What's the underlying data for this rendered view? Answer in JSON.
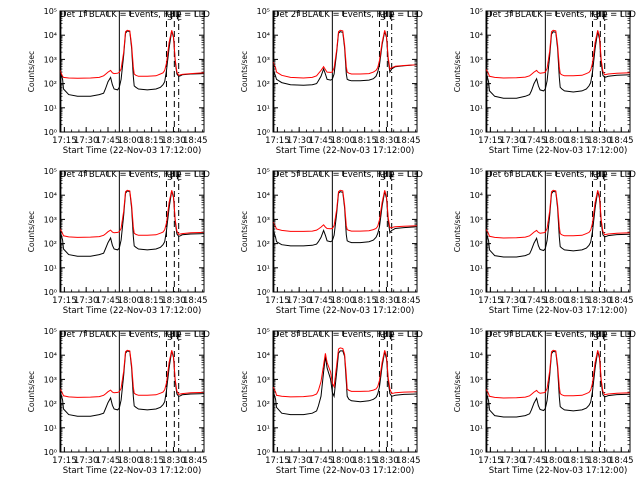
{
  "chart_data": {
    "type": "line",
    "layout": {
      "rows": 3,
      "cols": 3
    },
    "shared": {
      "xlabel": "Start Time (22-Nov-03 17:12:00)",
      "ylabel": "Counts/sec",
      "xlim": [
        17.2,
        18.85
      ],
      "x_ticks": [
        17.25,
        17.5,
        17.75,
        18.0,
        18.25,
        18.5,
        18.75
      ],
      "x_tick_labels": [
        "17:15",
        "17:30",
        "17:45",
        "18:00",
        "18:15",
        "18:30",
        "18:45"
      ],
      "y_scale": "log",
      "ylim": [
        1,
        100000
      ],
      "y_ticks": [
        1,
        10,
        100,
        1000,
        10000,
        100000
      ],
      "y_tick_labels": [
        "10⁰",
        "10¹",
        "10²",
        "10³",
        "10⁴",
        "10⁵"
      ],
      "vlines": [
        {
          "x": 17.21,
          "style": "solid"
        },
        {
          "x": 17.88,
          "style": "solid"
        },
        {
          "x": 18.42,
          "style": "dashed"
        },
        {
          "x": 18.51,
          "style": "dashed"
        },
        {
          "x": 18.56,
          "style": "dashdot"
        }
      ],
      "marks": {
        "x_ticks": [
          18.48,
          18.545
        ],
        "labels": [
          "S",
          "E"
        ]
      },
      "colors": {
        "events": "#000000",
        "lld": "#ff0000"
      },
      "x": [
        17.2,
        17.23,
        17.24,
        17.3,
        17.4,
        17.55,
        17.65,
        17.7,
        17.72,
        17.75,
        17.78,
        17.8,
        17.82,
        17.86,
        17.88,
        17.9,
        17.93,
        17.95,
        17.97,
        18.0,
        18.02,
        18.04,
        18.05,
        18.07,
        18.1,
        18.2,
        18.3,
        18.35,
        18.38,
        18.4,
        18.42,
        18.45,
        18.48,
        18.5,
        18.52,
        18.54,
        18.56,
        18.58,
        18.6,
        18.7,
        18.85
      ]
    },
    "panels": [
      {
        "title": "Det 1f BLACK = Events, RED = LLD",
        "series": [
          {
            "name": "Events",
            "values": [
              350,
              150,
              60,
              35,
              30,
              30,
              35,
              40,
              60,
              120,
              180,
              90,
              60,
              55,
              70,
              150,
              1500,
              12000,
              15000,
              14000,
              3000,
              200,
              80,
              70,
              60,
              55,
              60,
              70,
              90,
              120,
              350,
              3000,
              15000,
              8000,
              800,
              250,
              200,
              210,
              230,
              250,
              260
            ]
          },
          {
            "name": "LLD",
            "values": [
              350,
              200,
              180,
              170,
              165,
              170,
              180,
              210,
              240,
              300,
              350,
              280,
              260,
              270,
              290,
              400,
              2000,
              14000,
              16000,
              15000,
              4000,
              500,
              250,
              220,
              200,
              200,
              210,
              250,
              280,
              350,
              700,
              5000,
              16000,
              9000,
              1000,
              300,
              220,
              230,
              240,
              260,
              280
            ]
          }
        ]
      },
      {
        "title": "Det 2f BLACK = Events, RED = LLD",
        "series": [
          {
            "name": "Events",
            "values": [
              400,
              200,
              150,
              110,
              90,
              85,
              90,
              100,
              130,
              200,
              400,
              250,
              150,
              140,
              150,
              250,
              2000,
              12000,
              14000,
              13000,
              3000,
              250,
              150,
              140,
              130,
              130,
              140,
              160,
              200,
              300,
              600,
              4000,
              14000,
              8000,
              900,
              300,
              400,
              450,
              500,
              550,
              600
            ]
          },
          {
            "name": "LLD",
            "values": [
              800,
              450,
              300,
              220,
              180,
              170,
              180,
              210,
              260,
              350,
              500,
              380,
              300,
              290,
              300,
              450,
              2500,
              14000,
              16000,
              15000,
              4000,
              500,
              300,
              270,
              250,
              250,
              260,
              300,
              350,
              450,
              900,
              5000,
              16000,
              9000,
              1200,
              400,
              450,
              480,
              520,
              560,
              600
            ]
          }
        ]
      },
      {
        "title": "Det 3f BLACK = Events, RED = LLD",
        "series": [
          {
            "name": "Events",
            "values": [
              300,
              120,
              50,
              30,
              25,
              25,
              30,
              35,
              50,
              100,
              160,
              80,
              55,
              50,
              60,
              130,
              1400,
              11000,
              14000,
              13000,
              2800,
              180,
              70,
              60,
              50,
              45,
              50,
              60,
              80,
              110,
              300,
              2800,
              14000,
              7000,
              700,
              220,
              180,
              190,
              200,
              220,
              230
            ]
          },
          {
            "name": "LLD",
            "values": [
              400,
              250,
              200,
              180,
              170,
              175,
              185,
              210,
              240,
              300,
              350,
              290,
              270,
              280,
              300,
              420,
              2200,
              14000,
              16000,
              15000,
              4000,
              500,
              260,
              230,
              210,
              210,
              220,
              260,
              290,
              360,
              700,
              5000,
              16000,
              9000,
              1000,
              320,
              230,
              240,
              250,
              270,
              280
            ]
          }
        ]
      },
      {
        "title": "Det 4f BLACK = Events, RED = LLD",
        "series": [
          {
            "name": "Events",
            "values": [
              350,
              140,
              60,
              35,
              30,
              30,
              35,
              40,
              60,
              110,
              170,
              85,
              60,
              55,
              65,
              140,
              1500,
              12000,
              15000,
              14000,
              3000,
              200,
              80,
              70,
              60,
              55,
              60,
              70,
              90,
              120,
              350,
              3000,
              15000,
              8000,
              800,
              250,
              200,
              210,
              230,
              250,
              260
            ]
          },
          {
            "name": "LLD",
            "values": [
              420,
              260,
              210,
              190,
              180,
              185,
              195,
              220,
              250,
              310,
              360,
              300,
              280,
              290,
              310,
              430,
              2200,
              14000,
              16000,
              15000,
              4000,
              500,
              270,
              240,
              220,
              220,
              230,
              270,
              300,
              370,
              720,
              5000,
              16000,
              9000,
              1000,
              330,
              240,
              250,
              260,
              280,
              290
            ]
          }
        ]
      },
      {
        "title": "Det 5f BLACK = Events, RED = LLD",
        "series": [
          {
            "name": "Events",
            "values": [
              400,
              180,
              120,
              90,
              80,
              80,
              85,
              95,
              120,
              180,
              350,
              220,
              130,
              120,
              130,
              220,
              1800,
              12000,
              14000,
              13000,
              3000,
              230,
              130,
              120,
              110,
              110,
              120,
              140,
              180,
              260,
              500,
              3500,
              14000,
              7500,
              850,
              280,
              350,
              380,
              420,
              460,
              500
            ]
          },
          {
            "name": "LLD",
            "values": [
              800,
              500,
              400,
              350,
              320,
              320,
              330,
              360,
              400,
              480,
              600,
              480,
              420,
              410,
              420,
              550,
              2600,
              14000,
              16000,
              15000,
              4000,
              550,
              380,
              350,
              330,
              330,
              340,
              380,
              420,
              520,
              950,
              5000,
              16000,
              9000,
              1200,
              450,
              450,
              480,
              500,
              520,
              550
            ]
          }
        ]
      },
      {
        "title": "Det 6f BLACK = Events, RED = LLD",
        "series": [
          {
            "name": "Events",
            "values": [
              320,
              130,
              55,
              32,
              28,
              28,
              32,
              38,
              55,
              105,
              165,
              82,
              57,
              52,
              62,
              135,
              1450,
              11500,
              14500,
              13500,
              2900,
              190,
              75,
              65,
              55,
              50,
              55,
              65,
              85,
              115,
              320,
              2900,
              14500,
              7500,
              750,
              230,
              190,
              200,
              215,
              235,
              245
            ]
          },
          {
            "name": "LLD",
            "values": [
              400,
              250,
              200,
              180,
              170,
              175,
              185,
              210,
              240,
              300,
              350,
              290,
              270,
              280,
              300,
              420,
              2200,
              14000,
              16000,
              15000,
              4000,
              500,
              260,
              230,
              210,
              210,
              220,
              260,
              290,
              360,
              700,
              5000,
              16000,
              9000,
              1000,
              320,
              230,
              240,
              250,
              270,
              280
            ]
          }
        ]
      },
      {
        "title": "Det 7f BLACK = Events, RED = LLD",
        "series": [
          {
            "name": "Events",
            "values": [
              350,
              140,
              60,
              35,
              30,
              30,
              35,
              40,
              60,
              110,
              170,
              85,
              60,
              55,
              65,
              140,
              1500,
              12000,
              15000,
              14000,
              3000,
              200,
              80,
              70,
              60,
              55,
              60,
              70,
              90,
              120,
              350,
              3000,
              15000,
              8000,
              800,
              250,
              200,
              210,
              230,
              250,
              260
            ]
          },
          {
            "name": "LLD",
            "values": [
              420,
              260,
              210,
              190,
              180,
              185,
              195,
              220,
              250,
              310,
              360,
              300,
              280,
              290,
              310,
              430,
              2200,
              14000,
              16000,
              15000,
              4000,
              500,
              270,
              240,
              220,
              220,
              230,
              270,
              300,
              370,
              720,
              5000,
              16000,
              9000,
              1000,
              330,
              240,
              250,
              260,
              280,
              290
            ]
          }
        ]
      },
      {
        "title": "Det 8f BLACK = Events, RED = LLD",
        "series": [
          {
            "name": "Events",
            "values": [
              350,
              150,
              70,
              40,
              35,
              35,
              40,
              50,
              80,
              200,
              2000,
              9000,
              3000,
              1000,
              300,
              200,
              2000,
              12000,
              15000,
              15000,
              9000,
              800,
              200,
              150,
              130,
              120,
              130,
              150,
              180,
              250,
              500,
              3500,
              14000,
              7000,
              800,
              260,
              200,
              210,
              220,
              240,
              250
            ]
          },
          {
            "name": "LLD",
            "values": [
              500,
              300,
              220,
              200,
              190,
              195,
              210,
              250,
              350,
              800,
              4000,
              12000,
              5000,
              2000,
              700,
              500,
              4000,
              18000,
              20000,
              19000,
              11000,
              1500,
              400,
              350,
              320,
              320,
              330,
              360,
              400,
              500,
              900,
              5000,
              16000,
              9000,
              1200,
              400,
              260,
              270,
              280,
              300,
              310
            ]
          }
        ]
      },
      {
        "title": "Det 9f BLACK = Events, RED = LLD",
        "series": [
          {
            "name": "Events",
            "values": [
              320,
              130,
              55,
              32,
              28,
              28,
              32,
              38,
              55,
              105,
              165,
              82,
              57,
              52,
              62,
              135,
              1450,
              11500,
              14500,
              13500,
              2900,
              190,
              75,
              65,
              55,
              50,
              55,
              65,
              85,
              115,
              320,
              2900,
              14500,
              7500,
              750,
              230,
              190,
              200,
              215,
              235,
              245
            ]
          },
          {
            "name": "LLD",
            "values": [
              400,
              250,
              200,
              180,
              170,
              175,
              185,
              210,
              240,
              300,
              350,
              290,
              270,
              280,
              300,
              420,
              2200,
              14000,
              16000,
              15000,
              4000,
              500,
              260,
              230,
              210,
              210,
              220,
              260,
              290,
              360,
              700,
              5000,
              16000,
              9000,
              1000,
              320,
              230,
              240,
              250,
              270,
              280
            ]
          }
        ]
      }
    ]
  }
}
